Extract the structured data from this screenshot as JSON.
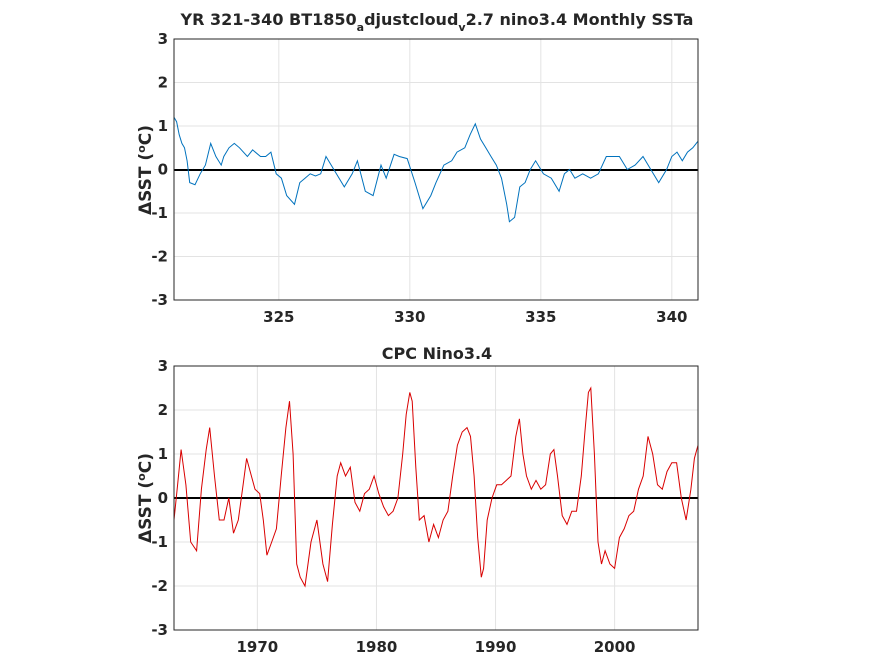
{
  "chart_data": [
    {
      "type": "line",
      "title": "YR 321-340 BT1850_adjustcloud_v2.7 nino3.4 Monthly SSTa",
      "title_parts": {
        "a": "YR 321-340 BT1850",
        "b": "a",
        "c": "djustcloud",
        "d": "v",
        "e": "2.7 nino3.4 Monthly SSTa"
      },
      "ylabel": "ΔSST (oC)",
      "ylabel_parts": {
        "delta": "Δ",
        "main": "SST (",
        "sup": "o",
        "unit": "C)"
      },
      "xlim": [
        321,
        341
      ],
      "ylim": [
        -3,
        3
      ],
      "xticks": [
        325,
        330,
        335,
        340
      ],
      "yticks": [
        3,
        2,
        1,
        0,
        -1,
        -2,
        -3
      ],
      "grid": true,
      "color": "#0072BD",
      "zero_line": true,
      "series": [
        {
          "x": [
            321.0,
            321.1,
            321.2,
            321.3,
            321.4,
            321.5,
            321.6,
            321.8,
            322.0,
            322.2,
            322.4,
            322.6,
            322.8,
            322.9,
            323.1,
            323.3,
            323.5,
            323.8,
            324.0,
            324.3,
            324.5,
            324.7,
            324.9,
            325.1,
            325.3,
            325.6,
            325.8,
            326.0,
            326.2,
            326.4,
            326.6,
            326.8,
            327.0,
            327.2,
            327.5,
            327.8,
            328.0,
            328.3,
            328.6,
            328.9,
            329.1,
            329.4,
            329.6,
            329.9,
            330.2,
            330.5,
            330.8,
            331.0,
            331.3,
            331.6,
            331.8,
            332.1,
            332.3,
            332.5,
            332.7,
            332.9,
            333.1,
            333.3,
            333.5,
            333.7,
            333.8,
            334.0,
            334.2,
            334.4,
            334.6,
            334.8,
            335.1,
            335.4,
            335.7,
            335.9,
            336.1,
            336.3,
            336.6,
            336.9,
            337.2,
            337.5,
            337.8,
            338.0,
            338.3,
            338.6,
            338.9,
            339.2,
            339.5,
            339.8,
            340.0,
            340.2,
            340.4,
            340.6,
            340.8,
            341.0
          ],
          "y": [
            1.2,
            1.1,
            0.8,
            0.6,
            0.5,
            0.2,
            -0.3,
            -0.35,
            -0.1,
            0.1,
            0.6,
            0.3,
            0.1,
            0.3,
            0.5,
            0.6,
            0.5,
            0.3,
            0.45,
            0.3,
            0.3,
            0.4,
            -0.1,
            -0.2,
            -0.6,
            -0.8,
            -0.3,
            -0.2,
            -0.1,
            -0.15,
            -0.1,
            0.3,
            0.1,
            -0.1,
            -0.4,
            -0.1,
            0.2,
            -0.5,
            -0.6,
            0.1,
            -0.2,
            0.35,
            0.3,
            0.25,
            -0.3,
            -0.9,
            -0.6,
            -0.3,
            0.1,
            0.2,
            0.4,
            0.5,
            0.8,
            1.05,
            0.7,
            0.5,
            0.3,
            0.1,
            -0.2,
            -0.8,
            -1.2,
            -1.1,
            -0.4,
            -0.3,
            0.0,
            0.2,
            -0.1,
            -0.2,
            -0.5,
            -0.1,
            0.0,
            -0.2,
            -0.1,
            -0.2,
            -0.1,
            0.3,
            0.3,
            0.3,
            0.0,
            0.1,
            0.3,
            0.0,
            -0.3,
            0.0,
            0.3,
            0.4,
            0.2,
            0.4,
            0.5,
            0.65
          ]
        }
      ]
    },
    {
      "type": "line",
      "title": "CPC Nino3.4",
      "ylabel": "ΔSST (oC)",
      "ylabel_parts": {
        "delta": "Δ",
        "main": "SST (",
        "sup": "o",
        "unit": "C)"
      },
      "xlim": [
        1963,
        2007
      ],
      "ylim": [
        -3,
        3
      ],
      "xticks": [
        1970,
        1980,
        1990,
        2000
      ],
      "yticks": [
        3,
        2,
        1,
        0,
        -1,
        -2,
        -3
      ],
      "grid": true,
      "color": "#D90000",
      "zero_line": true,
      "series": [
        {
          "x": [
            1963.0,
            1963.3,
            1963.6,
            1964.0,
            1964.4,
            1964.9,
            1965.3,
            1965.7,
            1966.0,
            1966.4,
            1966.8,
            1967.2,
            1967.6,
            1968.0,
            1968.4,
            1968.8,
            1969.1,
            1969.5,
            1969.8,
            1970.2,
            1970.5,
            1970.8,
            1971.2,
            1971.6,
            1972.0,
            1972.4,
            1972.7,
            1973.0,
            1973.3,
            1973.6,
            1974.0,
            1974.5,
            1975.0,
            1975.5,
            1975.9,
            1976.3,
            1976.7,
            1977.0,
            1977.4,
            1977.8,
            1978.2,
            1978.6,
            1979.0,
            1979.4,
            1979.8,
            1980.2,
            1980.6,
            1981.0,
            1981.4,
            1981.8,
            1982.2,
            1982.5,
            1982.8,
            1983.0,
            1983.3,
            1983.6,
            1984.0,
            1984.4,
            1984.8,
            1985.2,
            1985.6,
            1986.0,
            1986.4,
            1986.8,
            1987.2,
            1987.6,
            1987.9,
            1988.2,
            1988.5,
            1988.8,
            1989.0,
            1989.3,
            1989.7,
            1990.1,
            1990.5,
            1990.9,
            1991.3,
            1991.7,
            1992.0,
            1992.3,
            1992.6,
            1993.0,
            1993.4,
            1993.8,
            1994.2,
            1994.6,
            1994.9,
            1995.2,
            1995.6,
            1996.0,
            1996.4,
            1996.8,
            1997.2,
            1997.5,
            1997.8,
            1998.0,
            1998.3,
            1998.6,
            1998.9,
            1999.2,
            1999.6,
            2000.0,
            2000.4,
            2000.8,
            2001.2,
            2001.6,
            2002.0,
            2002.4,
            2002.8,
            2003.2,
            2003.6,
            2004.0,
            2004.4,
            2004.8,
            2005.2,
            2005.6,
            2006.0,
            2006.4,
            2006.7,
            2007.0
          ],
          "y": [
            -0.5,
            0.3,
            1.1,
            0.3,
            -1.0,
            -1.2,
            0.2,
            1.1,
            1.6,
            0.5,
            -0.5,
            -0.5,
            0.0,
            -0.8,
            -0.5,
            0.3,
            0.9,
            0.5,
            0.2,
            0.1,
            -0.5,
            -1.3,
            -1.0,
            -0.7,
            0.5,
            1.6,
            2.2,
            1.0,
            -1.5,
            -1.8,
            -2.0,
            -1.0,
            -0.5,
            -1.5,
            -1.9,
            -0.6,
            0.5,
            0.8,
            0.5,
            0.7,
            -0.1,
            -0.3,
            0.1,
            0.2,
            0.5,
            0.1,
            -0.2,
            -0.4,
            -0.3,
            0.0,
            1.0,
            1.9,
            2.4,
            2.2,
            0.7,
            -0.5,
            -0.4,
            -1.0,
            -0.6,
            -0.9,
            -0.5,
            -0.3,
            0.5,
            1.2,
            1.5,
            1.6,
            1.4,
            0.5,
            -0.9,
            -1.8,
            -1.6,
            -0.5,
            0.0,
            0.3,
            0.3,
            0.4,
            0.5,
            1.4,
            1.8,
            1.0,
            0.5,
            0.2,
            0.4,
            0.2,
            0.3,
            1.0,
            1.1,
            0.5,
            -0.4,
            -0.6,
            -0.3,
            -0.3,
            0.5,
            1.5,
            2.4,
            2.5,
            1.0,
            -1.0,
            -1.5,
            -1.2,
            -1.5,
            -1.6,
            -0.9,
            -0.7,
            -0.4,
            -0.3,
            0.2,
            0.5,
            1.4,
            1.0,
            0.3,
            0.2,
            0.6,
            0.8,
            0.8,
            0.0,
            -0.5,
            0.2,
            0.9,
            1.2
          ]
        }
      ]
    }
  ]
}
